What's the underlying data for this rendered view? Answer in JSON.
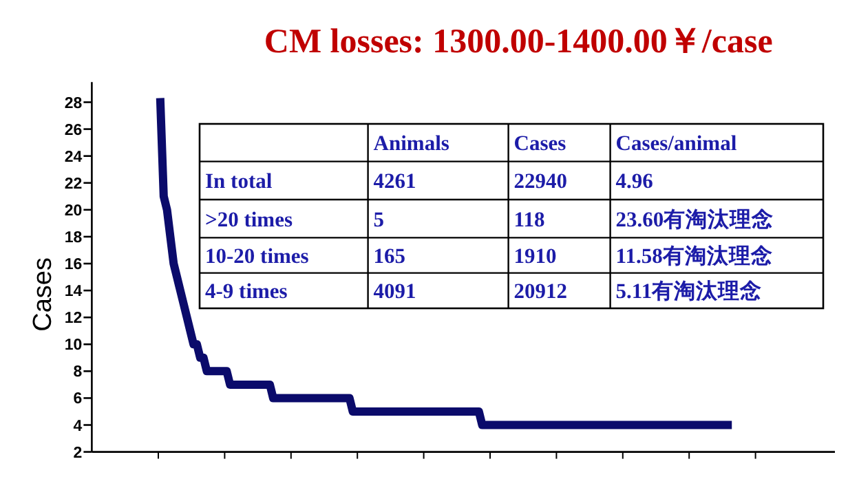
{
  "chart_data": {
    "type": "line",
    "title": "CM losses: 1300.00-1400.00￥/case",
    "ylabel": "Cases",
    "annotations": [
      "Animals",
      "Cases",
      "Cases/animal",
      "In total",
      "4261",
      "22940",
      "4.96",
      ">20 times",
      "5",
      "118",
      "23.60有淘汰理念",
      "10-20 times",
      "165",
      "1910",
      "11.58有淘汰理念",
      "4-9 times",
      "4091",
      "20912",
      "5.11有淘汰理念"
    ],
    "categories": [
      null,
      null,
      null,
      null,
      null,
      null,
      null,
      null,
      null,
      null,
      null,
      null,
      null,
      null,
      null,
      null,
      null,
      null,
      null,
      null,
      null,
      null,
      null,
      null,
      null,
      null,
      null,
      null,
      null,
      null,
      null,
      null,
      null,
      null,
      null,
      null,
      null,
      null,
      null,
      null,
      null,
      null,
      null,
      null,
      null,
      null,
      null,
      null,
      null,
      null,
      null,
      null,
      null,
      null,
      null,
      null,
      null,
      null,
      null,
      null,
      null,
      null,
      null,
      null,
      null,
      null,
      null,
      null,
      null,
      null,
      null,
      null,
      null,
      null,
      null,
      null,
      null,
      null,
      null,
      null,
      null,
      null,
      null,
      null,
      null,
      null,
      null,
      null,
      null,
      null,
      null,
      null,
      null,
      null,
      null,
      null,
      null,
      null,
      null,
      null,
      null,
      null,
      null,
      null,
      null,
      null,
      null,
      null,
      null,
      null,
      null,
      null,
      null,
      null,
      null,
      null,
      null,
      null,
      null,
      null,
      null,
      null,
      null,
      null,
      null,
      null,
      null,
      null,
      null,
      null,
      null,
      null,
      null,
      null,
      null,
      null,
      null,
      null,
      null,
      null,
      null,
      null,
      null,
      null,
      null,
      null,
      null,
      null,
      null,
      null,
      null,
      null,
      null,
      null,
      null,
      null,
      null,
      null,
      null,
      null,
      null,
      null,
      null,
      null,
      null,
      null,
      null,
      null,
      null,
      null,
      null,
      null
    ],
    "ylim": [
      2,
      29.5
    ],
    "yticks": [
      2,
      4,
      6,
      8,
      10,
      12,
      14,
      16,
      18,
      20,
      22,
      24,
      26,
      28
    ],
    "line_style": "solid",
    "series": [
      {
        "color": "#0b0b6b",
        "values": [
          28,
          21,
          20,
          18,
          16,
          15,
          14,
          13,
          12,
          11,
          10,
          10,
          9,
          9,
          8,
          8,
          8,
          8,
          8,
          8,
          8,
          7,
          7,
          7,
          7,
          7,
          7,
          7,
          7,
          7,
          7,
          7,
          7,
          7,
          6,
          6,
          6,
          6,
          6,
          6,
          6,
          6,
          6,
          6,
          6,
          6,
          6,
          6,
          6,
          6,
          6,
          6,
          6,
          6,
          6,
          6,
          6,
          6,
          5,
          5,
          5,
          5,
          5,
          5,
          5,
          5,
          5,
          5,
          5,
          5,
          5,
          5,
          5,
          5,
          5,
          5,
          5,
          5,
          5,
          5,
          5,
          5,
          5,
          5,
          5,
          5,
          5,
          5,
          5,
          5,
          5,
          5,
          5,
          5,
          5,
          5,
          5,
          4,
          4,
          4,
          4,
          4,
          4,
          4,
          4,
          4,
          4,
          4,
          4,
          4,
          4,
          4,
          4,
          4,
          4,
          4,
          4,
          4,
          4,
          4,
          4,
          4,
          4,
          4,
          4,
          4,
          4,
          4,
          4,
          4,
          4,
          4,
          4,
          4,
          4,
          4,
          4,
          4,
          4,
          4,
          4,
          4,
          4,
          4,
          4,
          4,
          4,
          4,
          4,
          4,
          4,
          4,
          4,
          4,
          4,
          4,
          4,
          4,
          4,
          4,
          4,
          4,
          4,
          4,
          4,
          4,
          4,
          4,
          4,
          4,
          4,
          4
        ]
      }
    ]
  }
}
